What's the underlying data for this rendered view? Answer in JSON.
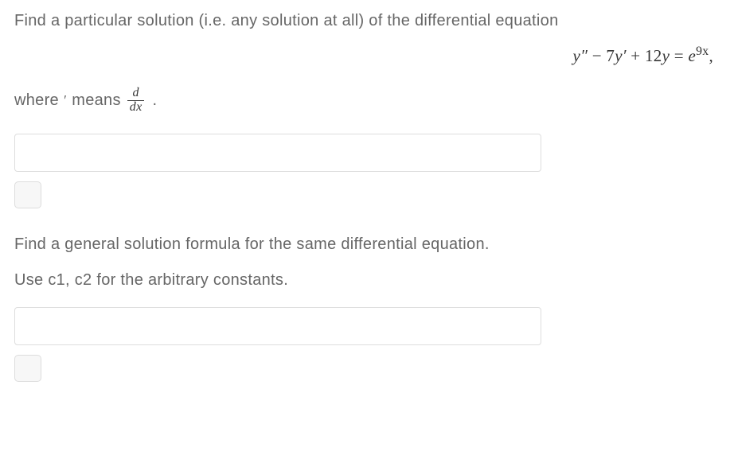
{
  "question1": {
    "prompt": "Find a particular solution (i.e. any solution at all) of the differential equation",
    "equation": {
      "raw": "y'' - 7y' + 12y = e^{9x},",
      "terms": {
        "y2": "y″",
        "minus": " − ",
        "coef7": "7",
        "y1": "y′",
        "plus": " + ",
        "coef12": "12",
        "y0": "y",
        "eq": " = ",
        "e": "e",
        "exp": "9x",
        "comma": ","
      }
    },
    "where_prefix": "where",
    "prime_symbol": "′",
    "where_means": "means",
    "fraction_num": "d",
    "fraction_den": "dx",
    "period": ".",
    "answer_value": "",
    "answer_placeholder": ""
  },
  "question2": {
    "prompt": "Find a general solution formula for the same differential equation.",
    "hint": "Use c1, c2 for the arbitrary constants.",
    "answer_value": "",
    "answer_placeholder": ""
  },
  "style": {
    "text_color": "#666666",
    "math_color": "#333333",
    "border_color": "#dddddd",
    "input_bg": "#ffffff",
    "button_bg": "#f7f7f7",
    "body_fontsize": 20,
    "equation_fontsize": 21,
    "input_width": 662,
    "input_height": 48,
    "button_size": 34
  }
}
